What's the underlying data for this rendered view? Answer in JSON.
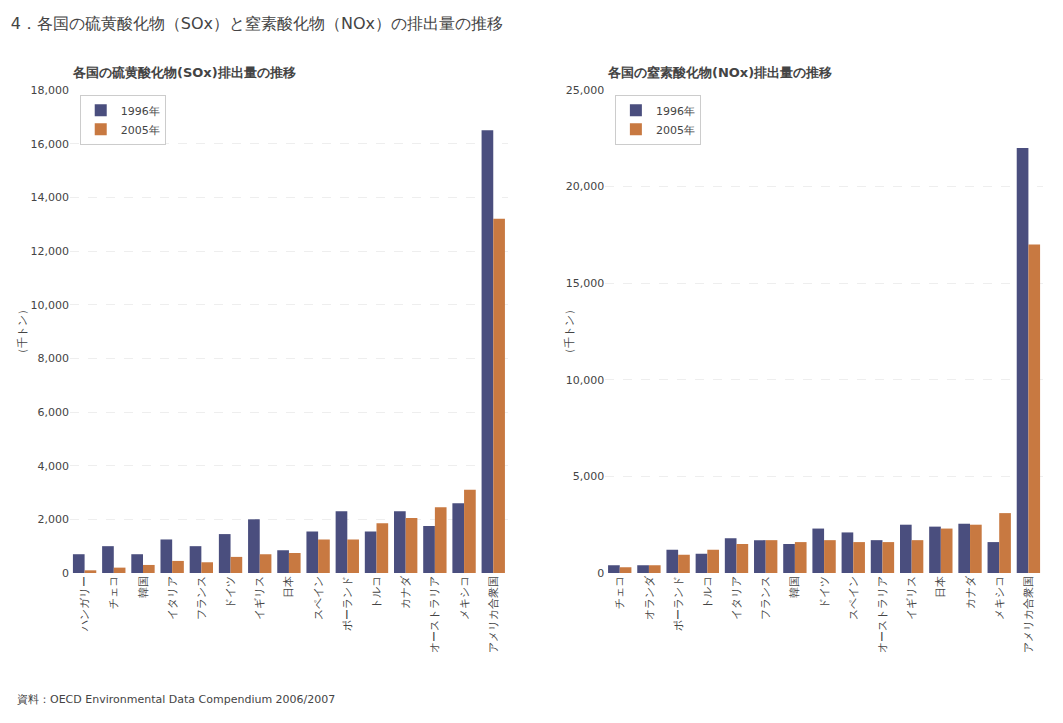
{
  "title": "4．各国の硫黄酸化物（SOx）と窒素酸化物（NOx）の排出量の推移",
  "annotations": [
    "資料：OECD Environmental Data Compendium 2006/2007"
  ],
  "chart_data": [
    {
      "type": "bar",
      "title": "各国の硫黄酸化物(SOx)排出量の推移",
      "ylabel": "（千トン）",
      "categories": [
        "ハンガリー",
        "チェコ",
        "韓国",
        "イタリア",
        "フランス",
        "ドイツ",
        "イギリス",
        "日本",
        "スペイン",
        "ポーランド",
        "トルコ",
        "カナダ",
        "オーストラリア",
        "メキシコ",
        "アメリカ合衆国"
      ],
      "series": [
        {
          "name": "1996年",
          "color": "#4a4e7e",
          "values": [
            700,
            1000,
            700,
            1250,
            1000,
            1450,
            2000,
            850,
            1550,
            2300,
            1550,
            2300,
            1750,
            2600,
            16500
          ]
        },
        {
          "name": "2005年",
          "color": "#c87941",
          "values": [
            100,
            200,
            300,
            450,
            400,
            600,
            700,
            750,
            1250,
            1250,
            1850,
            2050,
            2450,
            3100,
            13200
          ]
        }
      ],
      "ylim": [
        0,
        18000
      ],
      "yticks": [
        0,
        {
          "value": 2000,
          "label": "2,000"
        },
        {
          "value": 4000,
          "label": "4,000"
        },
        {
          "value": 6000,
          "label": "6,000"
        },
        {
          "value": 8000,
          "label": "8,000"
        },
        {
          "value": 10000,
          "label": "10,000"
        },
        {
          "value": 12000,
          "label": "12,000"
        },
        {
          "value": 14000,
          "label": "14,000"
        },
        {
          "value": 16000,
          "label": "16,000"
        },
        {
          "value": 18000,
          "label": "18,000"
        }
      ],
      "grid": true,
      "legend": "upper left"
    },
    {
      "type": "bar",
      "title": "各国の窒素酸化物(NOx)排出量の推移",
      "ylabel": "（千トン）",
      "categories": [
        "チェコ",
        "オランダ",
        "ポーランド",
        "トルコ",
        "イタリア",
        "フランス",
        "韓国",
        "ドイツ",
        "スペイン",
        "オーストラリア",
        "イギリス",
        "日本",
        "カナダ",
        "メキシコ",
        "アメリカ合衆国"
      ],
      "series": [
        {
          "name": "1996年",
          "color": "#4a4e7e",
          "values": [
            400,
            400,
            1200,
            1000,
            1800,
            1700,
            1500,
            2300,
            2100,
            1700,
            2500,
            2400,
            2550,
            1600,
            22000
          ]
        },
        {
          "name": "2005年",
          "color": "#c87941",
          "values": [
            300,
            400,
            950,
            1200,
            1500,
            1700,
            1600,
            1700,
            1600,
            1600,
            1700,
            2300,
            2500,
            3100,
            17000
          ]
        }
      ],
      "ylim": [
        0,
        25000
      ],
      "yticks": [
        0,
        {
          "value": 5000,
          "label": "5,000"
        },
        {
          "value": 10000,
          "label": "10,000"
        },
        {
          "value": 15000,
          "label": "15,000"
        },
        {
          "value": 20000,
          "label": "20,000"
        },
        {
          "value": 25000,
          "label": "25,000"
        }
      ],
      "grid": true,
      "legend": "upper left"
    }
  ]
}
